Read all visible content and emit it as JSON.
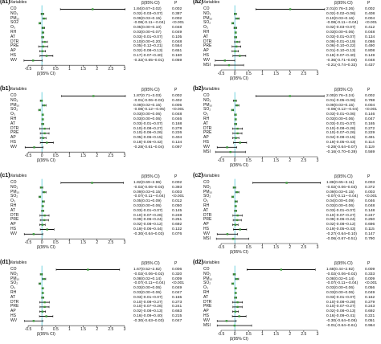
{
  "headers": {
    "variables": "Variables",
    "beta_ci": "β(95% CI)",
    "p": "P"
  },
  "chart_data": [
    {
      "panel": "(a1)",
      "type": "forest",
      "xlabel": "β(95% CI)",
      "xlim": [
        -0.5,
        3
      ],
      "ref_line": 0,
      "xticks": [
        "-0.5",
        "0",
        "0.5",
        "1",
        "1.5",
        "2",
        "2.5",
        "3"
      ],
      "variables": [
        "CO",
        "NO₂",
        "PM₁₀",
        "SO2",
        "O₃",
        "RH",
        "AT",
        "DTR",
        "PRE",
        "AP",
        "HS",
        "WV"
      ],
      "estimate": [
        1.84,
        0.02,
        0.09,
        -0.08,
        0.05,
        0.03,
        0.03,
        0.1,
        0.05,
        0.02,
        0.17,
        -0.32
      ],
      "lower": [
        0.67,
        -0.03,
        0.03,
        -0.11,
        0.0,
        0.0,
        -0.01,
        0.0,
        -0.12,
        -0.08,
        -0.07,
        -0.65
      ],
      "upper": [
        3.02,
        0.07,
        0.15,
        -0.04,
        0.1,
        0.07,
        0.07,
        0.2,
        0.21,
        0.13,
        0.4,
        0.01
      ],
      "ci_text": [
        "1.84(0.67~3.02)",
        "0.02(-0.03~0.07)",
        "0.09(0.03~0.15)",
        "-0.08(-0.11~-0.04)",
        "0.05(0.00~0.10)",
        "0.03(0.00~0.07)",
        "0.03(-0.01~0.07)",
        "0.10(0.00~0.20)",
        "0.05(-0.12~0.21)",
        "0.02(-0.08~0.13)",
        "0.17(-0.07~0.40)",
        "-0.32(-0.65~0.01)"
      ],
      "p": [
        "0.002",
        "0.387",
        "0.002",
        "<0.001",
        "0.048",
        "0.049",
        "0.105",
        "0.048",
        "0.564",
        "0.651",
        "0.160",
        "0.059"
      ]
    },
    {
      "panel": "(a2)",
      "type": "forest",
      "xlabel": "β(95% CI)",
      "xlim": [
        -0.5,
        3
      ],
      "ref_line": 0,
      "xticks": [
        "-0.5",
        "0",
        "0.5",
        "1",
        "1.5",
        "2",
        "2.5",
        "3"
      ],
      "variables": [
        "CO",
        "NO₂",
        "PM₁₀",
        "SO₂",
        "O₃",
        "RH",
        "AT",
        "DTR",
        "PRE",
        "AP",
        "HS",
        "WV",
        "MSI"
      ],
      "estimate": [
        2.01,
        0.02,
        0.1,
        -0.08,
        0.02,
        0.03,
        0.03,
        0.09,
        0.06,
        0.01,
        0.18,
        -0.36,
        -0.21
      ],
      "lower": [
        0.76,
        -0.02,
        0.03,
        -0.11,
        -0.03,
        0.0,
        -0.01,
        -0.01,
        -0.1,
        -0.1,
        -0.07,
        -0.71,
        -0.74
      ],
      "upper": [
        3.26,
        0.06,
        0.16,
        -0.04,
        0.07,
        0.06,
        0.07,
        0.19,
        0.22,
        0.13,
        0.4,
        0.0,
        0.32
      ],
      "ci_text": [
        "2.01(0.76~3.26)",
        "0.02(-0.02~0.06)",
        "0.10(0.03~0.16)",
        "-0.08(-0.11~-0.04)",
        "0.02(-0.03~0.07)",
        "0.03(0.00~0.06)",
        "0.03(-0.01~0.07)",
        "0.09(-0.01~0.19)",
        "0.06(-0.10~0.22)",
        "0.01(-0.10~0.13)",
        "0.18(-0.07~0.40)",
        "-0.36(-0.71~0.00)",
        "-0.21(-0.74~0.32)"
      ],
      "p": [
        "0.002",
        "0.408",
        "0.004",
        "<0.001",
        "0.412",
        "0.048",
        "0.134",
        "0.086",
        "0.490",
        "0.808",
        "0.149",
        "0.048",
        "0.437"
      ]
    },
    {
      "panel": "(b1)",
      "type": "forest",
      "xlabel": "β(95% CI)",
      "xlim": [
        -0.5,
        3
      ],
      "ref_line": 0,
      "xticks": [
        "-0.5",
        "0",
        "0.5",
        "1",
        "1.5",
        "2",
        "2.5",
        "3"
      ],
      "variables": [
        "CO",
        "NO₂",
        "PM₁₀",
        "SO₂",
        "O₃",
        "RH",
        "AT",
        "DTR",
        "PRE",
        "AP",
        "HS",
        "WV"
      ],
      "estimate": [
        1.87,
        -0.01,
        0.09,
        -0.08,
        0.03,
        0.03,
        0.03,
        0.1,
        0.1,
        0.05,
        0.18,
        -0.28
      ],
      "lower": [
        0.71,
        -0.06,
        0.02,
        -0.12,
        0.0,
        0.0,
        -0.01,
        -0.08,
        -0.06,
        -0.06,
        -0.06,
        -0.61
      ],
      "upper": [
        3.03,
        0.02,
        0.15,
        -0.05,
        0.06,
        0.06,
        0.07,
        0.27,
        0.26,
        0.15,
        0.42,
        0.04
      ],
      "ci_text": [
        "1.87(0.71~3.03)",
        "-0.01(-0.06~0.02)",
        "0.09(0.02~0.15)",
        "-0.08(-0.12~-0.05)",
        "0.03(0.00~0.06)",
        "0.03(0.00~0.06)",
        "0.03(-0.01~0.07)",
        "0.10(-0.08~0.27)",
        "0.10(-0.06~0.26)",
        "0.05(-0.06~0.15)",
        "0.18(-0.06~0.42)",
        "-0.28(-0.61~0.04)"
      ],
      "p": [
        "0.002",
        "0.402",
        "0.005",
        "<0.001",
        "0.048",
        "0.046",
        "0.168",
        "0.278",
        "0.226",
        "0.404",
        "0.134",
        "0.097"
      ]
    },
    {
      "panel": "(b2)",
      "type": "forest",
      "xlabel": "β(95% CI)",
      "xlim": [
        -0.5,
        3
      ],
      "ref_line": 0,
      "xticks": [
        "-0.5",
        "0",
        "0.5",
        "1",
        "1.5",
        "2",
        "2.5",
        "3"
      ],
      "variables": [
        "CO",
        "NO₂",
        "PM₁₀",
        "SO₂",
        "O₃",
        "RH",
        "AT",
        "DTR",
        "PRE",
        "AP",
        "HS",
        "WV",
        "MSI"
      ],
      "estimate": [
        2.0,
        0.01,
        0.09,
        -0.08,
        0.03,
        0.03,
        0.03,
        0.1,
        0.1,
        0.04,
        0.19,
        -0.28,
        -0.16
      ],
      "lower": [
        0.76,
        -0.05,
        0.03,
        -0.12,
        -0.01,
        0.0,
        -0.01,
        -0.08,
        -0.07,
        -0.08,
        -0.05,
        -0.64,
        -0.7
      ],
      "upper": [
        3.24,
        0.06,
        0.15,
        -0.04,
        0.06,
        0.06,
        0.07,
        0.28,
        0.26,
        0.15,
        0.43,
        0.07,
        0.39
      ],
      "ci_text": [
        "2.00(0.76~3.24)",
        "0.01(-0.05~0.06)",
        "0.09(0.03~0.15)",
        "-0.08(-0.12~-0.04)",
        "0.03(-0.01~0.06)",
        "0.03(0.00~0.06)",
        "0.03(-0.01~0.07)",
        "0.10(-0.08~0.28)",
        "0.10(-0.07~0.26)",
        "0.04(-0.08~0.15)",
        "0.19(-0.05~0.43)",
        "-0.28(-0.64~0.07)",
        "-0.16(-0.70~0.39)"
      ],
      "p": [
        "0.002",
        "0.788",
        "0.004",
        "<0.001",
        "0.146",
        "0.047",
        "0.165",
        "0.272",
        "0.229",
        "0.491",
        "0.114",
        "0.119",
        "0.569"
      ]
    },
    {
      "panel": "(c1)",
      "type": "forest",
      "xlabel": "β(95% CI)",
      "xlim": [
        -0.5,
        3
      ],
      "ref_line": 0,
      "xticks": [
        "-0.5",
        "0",
        "0.5",
        "1",
        "1.5",
        "2",
        "2.5",
        "3"
      ],
      "variables": [
        "CO",
        "NO₂",
        "PM₁₀",
        "SO₂",
        "O₃",
        "RH",
        "AT",
        "DTR",
        "PRE",
        "AP",
        "HS",
        "WV"
      ],
      "estimate": [
        1.82,
        -0.02,
        0.09,
        -0.07,
        0.05,
        0.03,
        0.03,
        0.1,
        0.09,
        0.02,
        0.19,
        -0.3
      ],
      "lower": [
        0.69,
        -0.06,
        0.03,
        -0.11,
        0.01,
        0.0,
        -0.01,
        -0.07,
        -0.06,
        -0.08,
        -0.06,
        -0.64
      ],
      "upper": [
        2.96,
        0.03,
        0.15,
        -0.04,
        0.09,
        0.06,
        0.07,
        0.26,
        0.24,
        0.12,
        0.44,
        0.03
      ],
      "ci_text": [
        "1.82(0.69~2.96)",
        "-0.02(-0.06~0.03)",
        "0.09(0.03~0.15)",
        "-0.07(-0.11~-0.04)",
        "0.05(0.01~0.09)",
        "0.03(0.00~0.06)",
        "0.03(-0.01~0.07)",
        "0.10(-0.07~0.26)",
        "0.09(-0.06~0.24)",
        "0.02(-0.08~0.12)",
        "0.19(-0.06~0.44)",
        "-0.30(-0.64~0.03)"
      ],
      "p": [
        "0.002",
        "0.393",
        "0.003",
        "<0.001",
        "0.012",
        "0.050",
        "0.145",
        "0.248",
        "0.251",
        "0.692",
        "0.132",
        "0.076"
      ]
    },
    {
      "panel": "(c2)",
      "type": "forest",
      "xlabel": "β(95% CI)",
      "xlim": [
        -0.5,
        3
      ],
      "ref_line": 0,
      "xticks": [
        "-0.5",
        "0",
        "0.5",
        "1",
        "1.5",
        "2",
        "2.5",
        "3"
      ],
      "variables": [
        "CO",
        "NO₂",
        "PM₁₀",
        "SO₂",
        "O₃",
        "RH",
        "AT",
        "DTR",
        "PRE",
        "AP",
        "HS",
        "WV",
        "MSI"
      ],
      "estimate": [
        1.88,
        -0.02,
        0.09,
        -0.07,
        0.04,
        0.03,
        0.03,
        0.1,
        0.09,
        0.02,
        0.19,
        -0.27,
        -0.06
      ],
      "lower": [
        0.65,
        -0.06,
        0.03,
        -0.11,
        0.0,
        0.0,
        -0.01,
        -0.07,
        -0.06,
        -0.08,
        -0.05,
        -0.64,
        -0.67
      ],
      "upper": [
        3.11,
        0.03,
        0.15,
        -0.04,
        0.09,
        0.06,
        0.07,
        0.27,
        0.24,
        0.12,
        0.43,
        0.1,
        0.51
      ],
      "ci_text": [
        "1.88(0.65~3.11)",
        "-0.02(-0.06~0.03)",
        "0.09(0.03~0.15)",
        "-0.07(-0.11~-0.04)",
        "0.04(0.00~0.09)",
        "0.03(0.00~0.06)",
        "0.03(-0.01~0.07)",
        "0.10(-0.07~0.27)",
        "0.09(-0.06~0.24)",
        "0.02(-0.08~0.12)",
        "0.19(-0.05~0.43)",
        "-0.27(-0.64~0.10)",
        "-0.06(-0.67~0.51)"
      ],
      "p": [
        "0.003",
        "0.372",
        "0.003",
        "<0.001",
        "0.046",
        "0.048",
        "0.148",
        "0.247",
        "0.250",
        "0.696",
        "0.115",
        "0.147",
        "0.790"
      ]
    },
    {
      "panel": "(d1)",
      "type": "forest",
      "xlabel": "β(95% CI)",
      "xlim": [
        -0.5,
        3
      ],
      "ref_line": 0,
      "xticks": [
        "-0.5",
        "0",
        "0.5",
        "1",
        "1.5",
        "2",
        "2.5",
        "3"
      ],
      "variables": [
        "CO",
        "NO₂",
        "PM₁₀",
        "SO₂",
        "O₃",
        "RH",
        "AT",
        "DTR",
        "PRE",
        "AP",
        "HS",
        "WV"
      ],
      "estimate": [
        1.67,
        -0.02,
        0.08,
        -0.07,
        0.03,
        0.03,
        0.03,
        0.1,
        0.1,
        0.02,
        0.16,
        -0.3
      ],
      "lower": [
        0.52,
        -0.06,
        0.02,
        -0.11,
        0.0,
        0.0,
        -0.01,
        -0.08,
        -0.07,
        -0.08,
        -0.09,
        -0.63
      ],
      "upper": [
        2.82,
        0.02,
        0.14,
        -0.04,
        0.06,
        0.06,
        0.07,
        0.27,
        0.26,
        0.13,
        0.4,
        0.03
      ],
      "ci_text": [
        "1.67(0.52~2.82)",
        "-0.02(-0.06~0.02)",
        "0.08(0.02~0.14)",
        "-0.07(-0.11~-0.04)",
        "0.03(0.00~0.06)",
        "0.03(0.00~0.06)",
        "0.03(-0.01~0.07)",
        "0.10(-0.08~0.27)",
        "0.10(-0.07~0.26)",
        "0.02(-0.08~0.13)",
        "0.16(-0.09~0.40)",
        "-0.30(-0.63~0.03)"
      ],
      "p": [
        "0.006",
        "0.320",
        "0.009",
        "<0.001",
        "0.049",
        "0.047",
        "0.155",
        "0.273",
        "0.241",
        "0.663",
        "0.215",
        "0.047"
      ]
    },
    {
      "panel": "(d2)",
      "type": "forest",
      "xlabel": "β(95% CI)",
      "xlim": [
        -0.5,
        3
      ],
      "ref_line": 0,
      "xticks": [
        "-0.5",
        "0",
        "0.5",
        "1",
        "1.5",
        "2",
        "2.5",
        "3"
      ],
      "variables": [
        "CO",
        "NO₂",
        "PM₁₀",
        "SO₂",
        "O₃",
        "RH",
        "AT",
        "DTR",
        "PRE",
        "AP",
        "HS",
        "WV",
        "MSI"
      ],
      "estimate": [
        1.68,
        -0.02,
        0.08,
        -0.07,
        0.03,
        0.03,
        0.03,
        0.1,
        0.1,
        0.02,
        0.16,
        -0.3,
        -0.01
      ],
      "lower": [
        0.44,
        -0.06,
        0.02,
        -0.11,
        0.0,
        0.0,
        -0.01,
        -0.08,
        -0.07,
        -0.08,
        -0.09,
        -0.64,
        -0.64
      ],
      "upper": [
        2.92,
        0.02,
        0.14,
        -0.04,
        0.06,
        0.06,
        0.07,
        0.28,
        0.27,
        0.13,
        0.41,
        0.05,
        0.61
      ],
      "ci_text": [
        "1.68(0.44~2.92)",
        "-0.02(-0.06~0.02)",
        "0.08(0.02~0.14)",
        "-0.07(-0.11~-0.04)",
        "0.03(0.00~0.06)",
        "0.03(0.00~0.06)",
        "0.03(-0.01~0.07)",
        "0.10(-0.08~0.28)",
        "0.10(-0.07~0.27)",
        "0.02(-0.08~0.13)",
        "0.16(-0.09~0.41)",
        "-0.30(-0.64~0.05)",
        "-0.01(-0.64~0.61)"
      ],
      "p": [
        "0.009",
        "0.333",
        "0.009",
        "<0.001",
        "0.056",
        "0.049",
        "0.162",
        "0.279",
        "0.243",
        "0.692",
        "0.221",
        "0.051",
        "0.964"
      ]
    }
  ]
}
